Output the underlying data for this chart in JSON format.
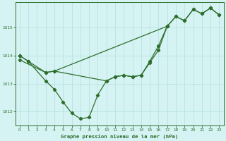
{
  "title": "Graphe pression niveau de la mer (hPa)",
  "bg_color": "#d6f3f3",
  "grid_color": "#b0dede",
  "line_color": "#2d6e2d",
  "xlim": [
    -0.5,
    23.5
  ],
  "ylim": [
    1011.5,
    1015.9
  ],
  "yticks": [
    1012,
    1013,
    1014,
    1015
  ],
  "xticks": [
    0,
    1,
    2,
    3,
    4,
    5,
    6,
    7,
    8,
    9,
    10,
    11,
    12,
    13,
    14,
    15,
    16,
    17,
    18,
    19,
    20,
    21,
    22,
    23
  ],
  "line_A_x": [
    0,
    1,
    3,
    4,
    5,
    6,
    7,
    8,
    9,
    10,
    11,
    12,
    13,
    14,
    15,
    16,
    17
  ],
  "line_A_y": [
    1014.0,
    1013.8,
    1013.1,
    1012.8,
    1012.35,
    1011.95,
    1011.75,
    1011.8,
    1012.6,
    1013.1,
    1013.25,
    1013.3,
    1013.25,
    1013.3,
    1013.8,
    1014.35,
    1015.05
  ],
  "line_B_x": [
    0,
    3,
    4,
    17,
    18,
    19,
    20,
    21,
    22,
    23
  ],
  "line_B_y": [
    1013.85,
    1013.4,
    1013.45,
    1015.05,
    1015.4,
    1015.25,
    1015.65,
    1015.5,
    1015.7,
    1015.45
  ],
  "line_C_x": [
    0,
    1,
    3,
    4,
    10,
    11,
    12,
    13,
    14,
    15,
    16,
    17,
    18,
    19,
    20,
    21,
    22,
    23
  ],
  "line_C_y": [
    1014.0,
    1013.8,
    1013.4,
    1013.45,
    1013.1,
    1013.25,
    1013.3,
    1013.25,
    1013.3,
    1013.75,
    1014.2,
    1015.05,
    1015.4,
    1015.25,
    1015.65,
    1015.5,
    1015.7,
    1015.45
  ]
}
